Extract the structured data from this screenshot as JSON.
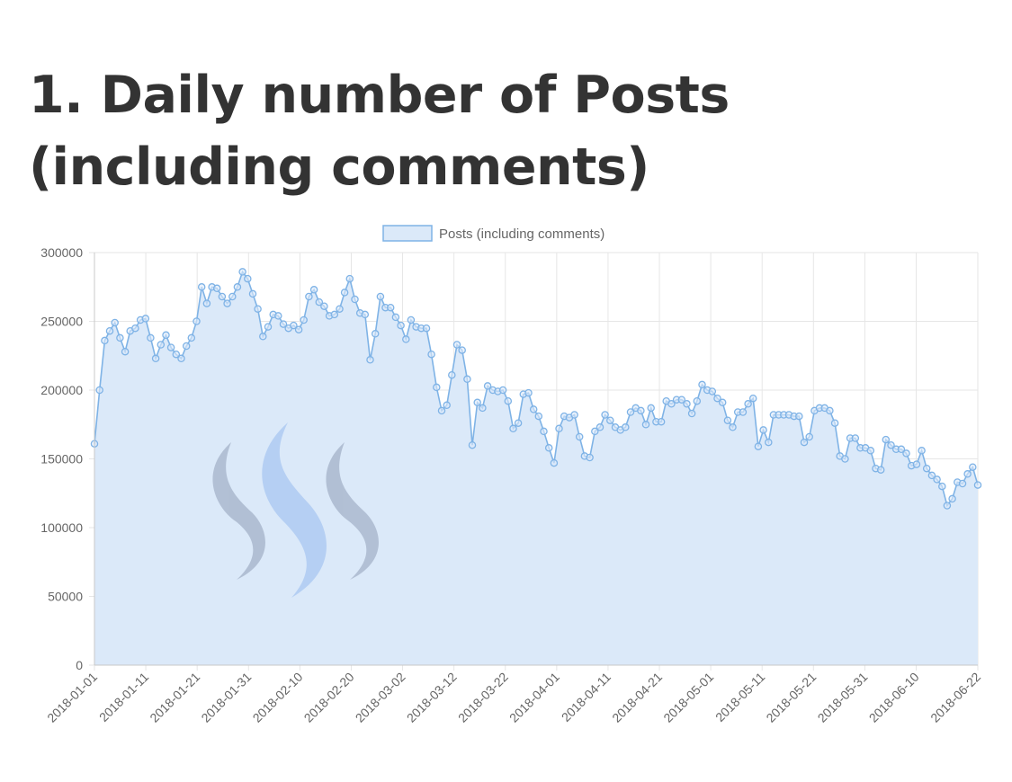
{
  "page": {
    "title": "1. Daily number of Posts (including comments)"
  },
  "colors": {
    "line": "#7fb3e6",
    "fill": "#dbe9f9",
    "grid": "#e6e6e6",
    "text": "#666666",
    "logo_gray": "#a4b2c8",
    "logo_blue": "#a9c7f2"
  },
  "chart_data": {
    "type": "area",
    "title": "",
    "legend": {
      "position": "top",
      "label": "Posts (including comments)"
    },
    "grid": true,
    "ylim": [
      0,
      300000
    ],
    "y_ticks": [
      "0",
      "50000",
      "100000",
      "150000",
      "200000",
      "250000",
      "300000"
    ],
    "y_tick_values": [
      0,
      50000,
      100000,
      150000,
      200000,
      250000,
      300000
    ],
    "x_start": "2018-01-01",
    "x_end": "2018-06-22",
    "x_ticks": [
      "2018-01-01",
      "2018-01-11",
      "2018-01-21",
      "2018-01-31",
      "2018-02-10",
      "2018-02-20",
      "2018-03-02",
      "2018-03-12",
      "2018-03-22",
      "2018-04-01",
      "2018-04-11",
      "2018-04-21",
      "2018-05-01",
      "2018-05-11",
      "2018-05-21",
      "2018-05-31",
      "2018-06-10",
      "2018-06-22"
    ],
    "series": [
      {
        "name": "Posts (including comments)",
        "values": [
          161000,
          200000,
          236000,
          243000,
          249000,
          238000,
          228000,
          243000,
          245000,
          251000,
          252000,
          238000,
          223000,
          233000,
          240000,
          231000,
          226000,
          223000,
          232000,
          238000,
          250000,
          275000,
          263000,
          275000,
          274000,
          268000,
          263000,
          268000,
          275000,
          286000,
          281000,
          270000,
          259000,
          239000,
          246000,
          255000,
          254000,
          248000,
          245000,
          247000,
          244000,
          251000,
          268000,
          273000,
          264000,
          261000,
          254000,
          255000,
          259000,
          271000,
          281000,
          266000,
          256000,
          255000,
          222000,
          241000,
          268000,
          260000,
          260000,
          253000,
          247000,
          237000,
          251000,
          246000,
          245000,
          245000,
          226000,
          202000,
          185000,
          189000,
          211000,
          233000,
          229000,
          208000,
          160000,
          191000,
          187000,
          203000,
          200000,
          199000,
          200000,
          192000,
          172000,
          176000,
          197000,
          198000,
          186000,
          181000,
          170000,
          158000,
          147000,
          172000,
          181000,
          180000,
          182000,
          166000,
          152000,
          151000,
          170000,
          173000,
          182000,
          178000,
          173000,
          171000,
          173000,
          184000,
          187000,
          185000,
          175000,
          187000,
          177000,
          177000,
          192000,
          190000,
          193000,
          193000,
          190000,
          183000,
          192000,
          204000,
          200000,
          199000,
          194000,
          191000,
          178000,
          173000,
          184000,
          184000,
          190000,
          194000,
          159000,
          171000,
          162000,
          182000,
          182000,
          182000,
          182000,
          181000,
          181000,
          162000,
          166000,
          185000,
          187000,
          187000,
          185000,
          176000,
          152000,
          150000,
          165000,
          165000,
          158000,
          158000,
          156000,
          143000,
          142000,
          164000,
          160000,
          157000,
          157000,
          154000,
          145000,
          146000,
          156000,
          143000,
          138000,
          135000,
          130000,
          116000,
          121000,
          133000,
          132000,
          139000,
          144000,
          131000
        ]
      }
    ]
  }
}
